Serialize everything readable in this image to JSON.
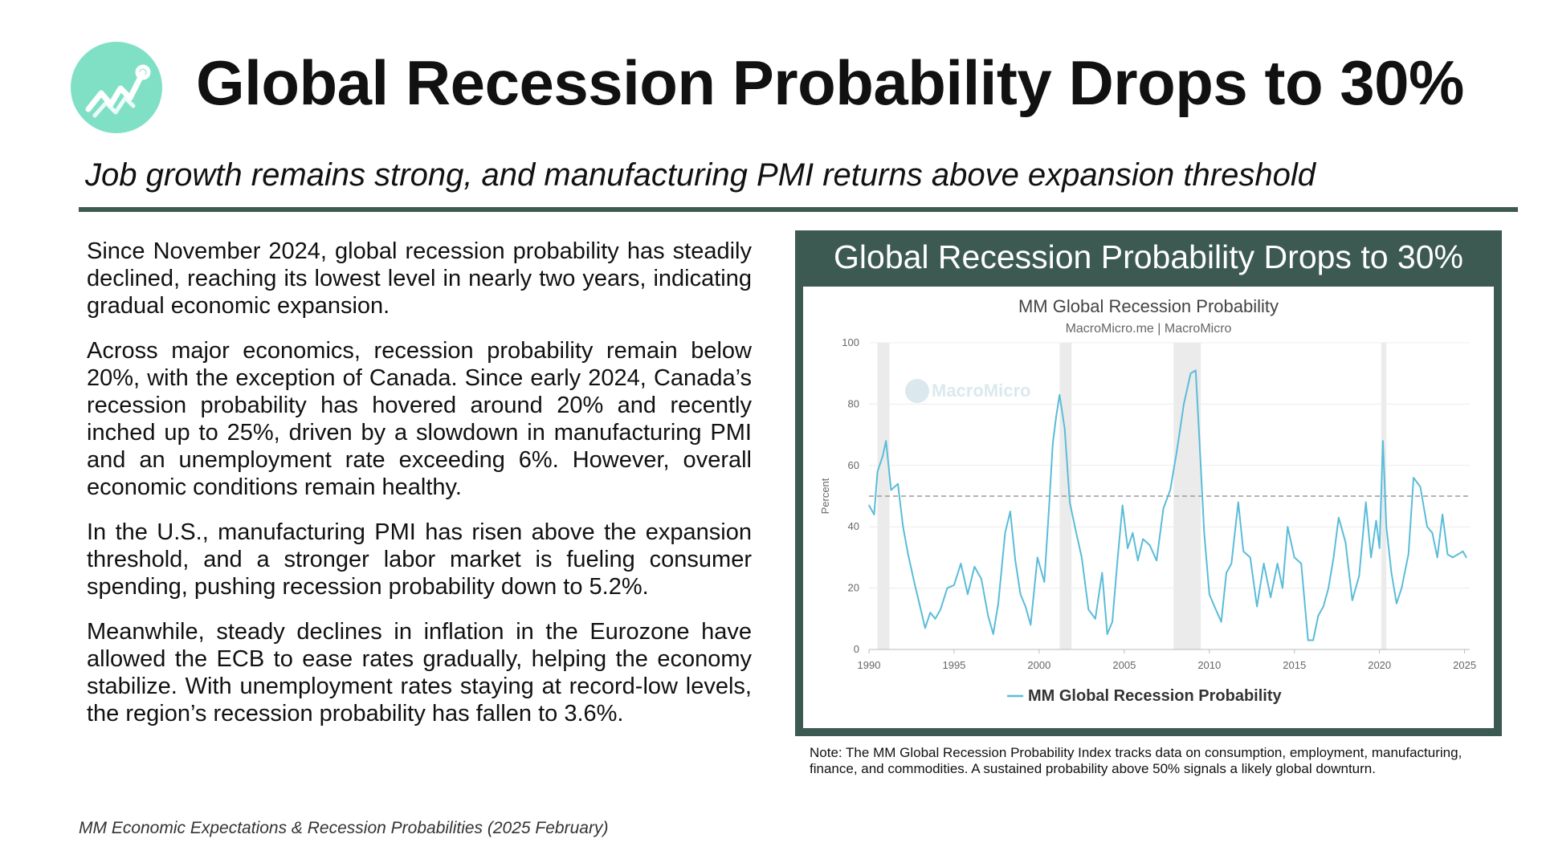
{
  "header": {
    "logo_icon": "trend-line-icon",
    "title": "Global Recession Probability Drops to 30%",
    "subtitle": "Job growth remains strong, and manufacturing PMI returns above expansion threshold"
  },
  "body": {
    "paragraphs": [
      "Since November 2024, global recession probability has steadily declined, reaching its lowest level in nearly two years, indicating gradual economic expansion.",
      "Across major economics, recession probability remain below 20%, with the exception of Canada. Since early 2024, Canada’s recession probability has hovered around 20% and recently inched up to 25%, driven by a slowdown in manufacturing PMI and an unemployment rate exceeding 6%. However, overall economic conditions remain healthy.",
      "In the U.S., manufacturing PMI has risen above the expansion threshold, and a stronger labor market is fueling consumer spending, pushing recession probability down to 5.2%.",
      "Meanwhile, steady declines in inflation in the Eurozone have allowed the ECB to ease rates gradually, helping the economy stabilize. With unemployment rates staying at record-low levels, the region’s recession probability has fallen to 3.6%."
    ]
  },
  "panel": {
    "title": "Global Recession Probability Drops to 30%",
    "note": "Note: The MM Global Recession Probability Index tracks data on consumption, employment, manufacturing, finance, and commodities. A sustained probability above 50% signals a likely global downturn."
  },
  "footer": {
    "source": "MM Economic Expectations & Recession Probabilities (2025 February)"
  },
  "colors": {
    "accent": "#7fe0c6",
    "panel": "#3d5a52",
    "line": "#5bbcd9",
    "shade": "#ebebeb"
  },
  "chart_data": {
    "type": "line",
    "title": "MM Global Recession Probability",
    "subtitle": "MacroMicro.me | MacroMicro",
    "watermark": "MacroMicro",
    "xlabel": "",
    "ylabel": "Percent",
    "xlim": [
      1990,
      2025.3
    ],
    "ylim": [
      0,
      100
    ],
    "xticks": [
      1990,
      1995,
      2000,
      2005,
      2010,
      2015,
      2020,
      2025
    ],
    "yticks": [
      0,
      20,
      40,
      60,
      80,
      100
    ],
    "grid": true,
    "legend": "bottom-center",
    "reference_line": 50,
    "recession_shading": [
      [
        1990.5,
        1991.2
      ],
      [
        2001.2,
        2001.9
      ],
      [
        2007.9,
        2009.5
      ],
      [
        2020.1,
        2020.4
      ]
    ],
    "series": [
      {
        "name": "MM Global Recession Probability",
        "x": [
          1990.0,
          1990.3,
          1990.5,
          1990.8,
          1991.0,
          1991.3,
          1991.7,
          1992.0,
          1992.3,
          1992.7,
          1993.0,
          1993.3,
          1993.6,
          1993.9,
          1994.2,
          1994.6,
          1995.0,
          1995.4,
          1995.8,
          1996.2,
          1996.6,
          1997.0,
          1997.3,
          1997.6,
          1998.0,
          1998.3,
          1998.6,
          1998.9,
          1999.2,
          1999.5,
          1999.9,
          2000.3,
          2000.6,
          2000.8,
          2001.0,
          2001.2,
          2001.5,
          2001.8,
          2002.1,
          2002.5,
          2002.9,
          2003.3,
          2003.7,
          2004.0,
          2004.3,
          2004.6,
          2004.9,
          2005.2,
          2005.5,
          2005.8,
          2006.1,
          2006.5,
          2006.9,
          2007.3,
          2007.7,
          2008.1,
          2008.5,
          2008.9,
          2009.2,
          2009.4,
          2009.7,
          2010.0,
          2010.3,
          2010.7,
          2011.0,
          2011.3,
          2011.7,
          2012.0,
          2012.4,
          2012.8,
          2013.2,
          2013.6,
          2014.0,
          2014.3,
          2014.6,
          2015.0,
          2015.4,
          2015.8,
          2016.1,
          2016.4,
          2016.7,
          2017.0,
          2017.3,
          2017.6,
          2018.0,
          2018.4,
          2018.8,
          2019.2,
          2019.5,
          2019.8,
          2020.0,
          2020.2,
          2020.4,
          2020.7,
          2021.0,
          2021.3,
          2021.7,
          2022.0,
          2022.4,
          2022.8,
          2023.1,
          2023.4,
          2023.7,
          2024.0,
          2024.3,
          2024.6,
          2024.9,
          2025.1
        ],
        "values": [
          47,
          44,
          58,
          63,
          68,
          52,
          54,
          40,
          31,
          21,
          14,
          7,
          12,
          10,
          13,
          20,
          21,
          28,
          18,
          27,
          23,
          11,
          5,
          15,
          38,
          45,
          29,
          18,
          14,
          8,
          30,
          22,
          48,
          67,
          76,
          83,
          72,
          48,
          40,
          30,
          13,
          10,
          25,
          5,
          9,
          29,
          47,
          33,
          38,
          29,
          36,
          34,
          29,
          46,
          52,
          65,
          80,
          90,
          91,
          70,
          38,
          18,
          14,
          9,
          25,
          28,
          48,
          32,
          30,
          14,
          28,
          17,
          28,
          20,
          40,
          30,
          28,
          3,
          3,
          11,
          14,
          20,
          30,
          43,
          35,
          16,
          24,
          48,
          30,
          42,
          33,
          68,
          40,
          25,
          15,
          20,
          31,
          56,
          53,
          40,
          38,
          30,
          44,
          31,
          30,
          31,
          32,
          30
        ]
      }
    ]
  }
}
